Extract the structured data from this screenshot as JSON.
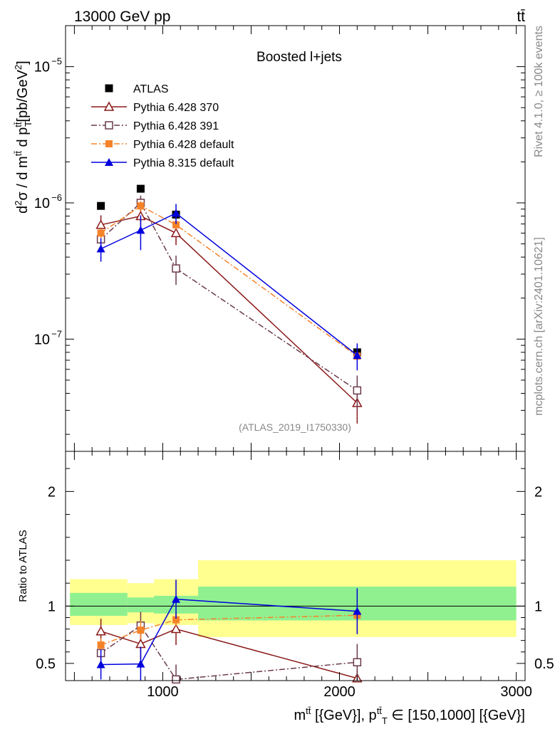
{
  "header": {
    "left": "13000 GeV pp",
    "right": "tt̄"
  },
  "side_labels": {
    "rivet": "Rivet 4.1.0, ≥ 100k events",
    "mcplots": "mcplots.cern.ch [arXiv:2401.10621]"
  },
  "chart_data": [
    {
      "type": "line",
      "title": "Boosted l+jets",
      "watermark": "(ATLAS_2019_I1750330)",
      "ylabel": "d²σ / d m^{t̄t} d p_T^{t̄t} [pb/GeV²]",
      "yscale": "log",
      "ylim": [
        1.5e-08,
        2e-05
      ],
      "xlim": [
        450,
        3050
      ],
      "y_ticks": [
        {
          "value": 1e-05,
          "base": "10",
          "exp": "−5"
        },
        {
          "value": 1e-06,
          "base": "10",
          "exp": "−6"
        },
        {
          "value": 1e-07,
          "base": "10",
          "exp": "−7"
        }
      ],
      "bins": [
        [
          475,
          800
        ],
        [
          800,
          950
        ],
        [
          950,
          1200
        ],
        [
          1200,
          3000
        ]
      ],
      "series": [
        {
          "name": "ATLAS",
          "color": "#000000",
          "marker": "square-filled",
          "x": [
            650,
            875,
            1075,
            2100
          ],
          "values": [
            9.5e-07,
            1.27e-06,
            8.2e-07,
            8e-08
          ]
        },
        {
          "name": "Pythia 6.428 370",
          "color": "#8b1a1a",
          "marker": "triangle-open",
          "dash": "",
          "x": [
            650,
            875,
            1075,
            2100
          ],
          "values": [
            6.9e-07,
            8e-07,
            6e-07,
            3.4e-08
          ],
          "err": [
            [
              1.2e-07,
              1.2e-07
            ],
            [
              1.5e-07,
              1.5e-07
            ],
            [
              1.1e-07,
              1.1e-07
            ],
            [
              1e-08,
              1e-08
            ]
          ]
        },
        {
          "name": "Pythia 6.428 391",
          "color": "#6b3a4a",
          "marker": "square-open",
          "dash": "8,3,2,3",
          "x": [
            650,
            875,
            1075,
            2100
          ],
          "values": [
            5.4e-07,
            1e-06,
            3.3e-07,
            4.2e-08
          ],
          "err": [
            [
              8e-08,
              8e-08
            ],
            [
              1.3e-07,
              1.3e-07
            ],
            [
              8e-08,
              8e-08
            ],
            [
              1.2e-08,
              1.2e-08
            ]
          ]
        },
        {
          "name": "Pythia 6.428 default",
          "color": "#f5832a",
          "marker": "square-filled",
          "dash": "8,3,2,3",
          "x": [
            650,
            875,
            1075,
            2100
          ],
          "values": [
            6e-07,
            9.5e-07,
            6.9e-07,
            7.5e-08
          ],
          "err": [
            [
              5e-08,
              5e-08
            ],
            [
              8e-08,
              8e-08
            ],
            [
              5e-08,
              5e-08
            ],
            [
              6e-09,
              6e-09
            ]
          ]
        },
        {
          "name": "Pythia 8.315 default",
          "color": "#0000dd",
          "marker": "triangle-filled",
          "dash": "",
          "x": [
            650,
            875,
            1075,
            2100
          ],
          "values": [
            4.6e-07,
            6.3e-07,
            8.4e-07,
            7.6e-08
          ],
          "err": [
            [
              9e-08,
              9e-08
            ],
            [
              1.8e-07,
              1.8e-07
            ],
            [
              1.4e-07,
              1.4e-07
            ],
            [
              1.7e-08,
              1.7e-08
            ]
          ]
        }
      ]
    },
    {
      "type": "line",
      "ylabel": "Ratio to ATLAS",
      "xlabel": "m^{t̄t} [{GeV}], p_T^{t̄t} ∈ [150,1000] [{GeV}]",
      "ylim": [
        0.35,
        2.35
      ],
      "xlim": [
        450,
        3050
      ],
      "x_ticks": [
        1000,
        2000,
        3000
      ],
      "y_ticks": [
        0.5,
        1,
        2
      ],
      "y_tick_labels": [
        "0.5",
        "1",
        "2"
      ],
      "reference": 1,
      "bands": [
        {
          "x": [
            475,
            800
          ],
          "inner": [
            0.915,
            1.115
          ],
          "outer": [
            0.835,
            1.235
          ]
        },
        {
          "x": [
            800,
            950
          ],
          "inner": [
            0.945,
            1.075
          ],
          "outer": [
            0.85,
            1.2
          ]
        },
        {
          "x": [
            950,
            1200
          ],
          "inner": [
            0.935,
            1.09
          ],
          "outer": [
            0.835,
            1.235
          ]
        },
        {
          "x": [
            1200,
            3000
          ],
          "inner": [
            0.875,
            1.17
          ],
          "outer": [
            0.73,
            1.4
          ]
        }
      ],
      "band_colors": {
        "inner": "#90f090",
        "outer": "#ffff90"
      },
      "series": [
        {
          "name": "Pythia 6.428 370",
          "x": [
            650,
            875,
            1075,
            2100
          ],
          "values": [
            0.78,
            0.67,
            0.8,
            0.37
          ],
          "err": [
            [
              0.11,
              0.11
            ],
            [
              0.14,
              0.14
            ],
            [
              0.14,
              0.14
            ],
            [
              0.07,
              0.07
            ]
          ]
        },
        {
          "name": "Pythia 6.428 391",
          "x": [
            650,
            875,
            1075,
            2100
          ],
          "values": [
            0.59,
            0.83,
            0.36,
            0.51
          ],
          "err": [
            [
              0.1,
              0.1
            ],
            [
              0.12,
              0.12
            ],
            [
              0.13,
              0.13
            ],
            [
              0.16,
              0.16
            ]
          ]
        },
        {
          "name": "Pythia 6.428 default",
          "x": [
            650,
            875,
            1075,
            2100
          ],
          "values": [
            0.66,
            0.79,
            0.88,
            0.92
          ],
          "err": [
            [
              0.06,
              0.06
            ],
            [
              0.08,
              0.08
            ],
            [
              0.06,
              0.06
            ],
            [
              0.07,
              0.07
            ]
          ]
        },
        {
          "name": "Pythia 8.315 default",
          "x": [
            650,
            875,
            1075,
            2100
          ],
          "values": [
            0.49,
            0.495,
            1.06,
            0.955
          ],
          "err": [
            [
              0.13,
              0.13
            ],
            [
              0.15,
              0.15
            ],
            [
              0.17,
              0.17
            ],
            [
              0.2,
              0.2
            ]
          ]
        }
      ]
    }
  ]
}
